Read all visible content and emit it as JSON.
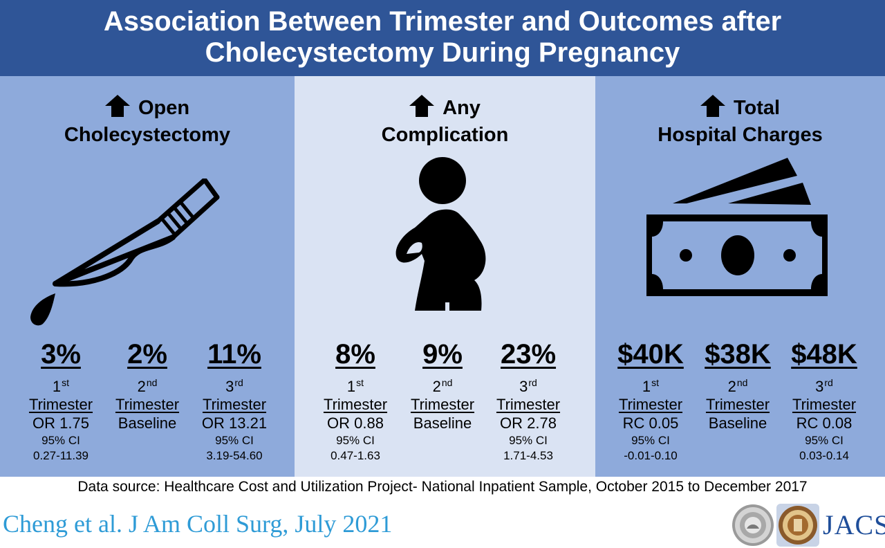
{
  "header": {
    "title_line1": "Association Between Trimester and Outcomes after",
    "title_line2": "Cholecystectomy During Pregnancy"
  },
  "panels": [
    {
      "title_line1": "Open",
      "title_line2": "Cholecystectomy",
      "icon": "scalpel-icon",
      "stats": [
        {
          "value": "3%",
          "ordinal": "1",
          "ordinal_suffix": "st",
          "trimester": "Trimester",
          "measure": "OR 1.75",
          "ci_label": "95% CI",
          "ci_range": "0.27-11.39"
        },
        {
          "value": "2%",
          "ordinal": "2",
          "ordinal_suffix": "nd",
          "trimester": "Trimester",
          "measure": "Baseline",
          "ci_label": "",
          "ci_range": ""
        },
        {
          "value": "11%",
          "ordinal": "3",
          "ordinal_suffix": "rd",
          "trimester": "Trimester",
          "measure": "OR 13.21",
          "ci_label": "95% CI",
          "ci_range": "3.19-54.60"
        }
      ]
    },
    {
      "title_line1": "Any",
      "title_line2": "Complication",
      "icon": "pregnant-woman-icon",
      "stats": [
        {
          "value": "8%",
          "ordinal": "1",
          "ordinal_suffix": "st",
          "trimester": "Trimester",
          "measure": "OR 0.88",
          "ci_label": "95% CI",
          "ci_range": "0.47-1.63"
        },
        {
          "value": "9%",
          "ordinal": "2",
          "ordinal_suffix": "nd",
          "trimester": "Trimester",
          "measure": "Baseline",
          "ci_label": "",
          "ci_range": ""
        },
        {
          "value": "23%",
          "ordinal": "3",
          "ordinal_suffix": "rd",
          "trimester": "Trimester",
          "measure": "OR 2.78",
          "ci_label": "95% CI",
          "ci_range": "1.71-4.53"
        }
      ]
    },
    {
      "title_line1": "Total",
      "title_line2": "Hospital Charges",
      "icon": "money-icon",
      "stats": [
        {
          "value": "$40K",
          "ordinal": "1",
          "ordinal_suffix": "st",
          "trimester": "Trimester",
          "measure": "RC 0.05",
          "ci_label": "95% CI",
          "ci_range": "-0.01-0.10"
        },
        {
          "value": "$38K",
          "ordinal": "2",
          "ordinal_suffix": "nd",
          "trimester": "Trimester",
          "measure": "Baseline",
          "ci_label": "",
          "ci_range": ""
        },
        {
          "value": "$48K",
          "ordinal": "3",
          "ordinal_suffix": "rd",
          "trimester": "Trimester",
          "measure": "RC 0.08",
          "ci_label": "95% CI",
          "ci_range": "0.03-0.14"
        }
      ]
    }
  ],
  "footer": {
    "data_source": "Data source: Healthcare Cost and Utilization Project- National Inpatient Sample, October 2015 to December 2017",
    "citation": "Cheng et al. J Am Coll Surg, July 2021",
    "journal_logo": "JACS"
  },
  "colors": {
    "header_bg": "#2f5597",
    "panel_dark": "#8eaadb",
    "panel_light": "#dae3f3",
    "citation": "#2e9bd6",
    "journal": "#1f4e9a"
  }
}
